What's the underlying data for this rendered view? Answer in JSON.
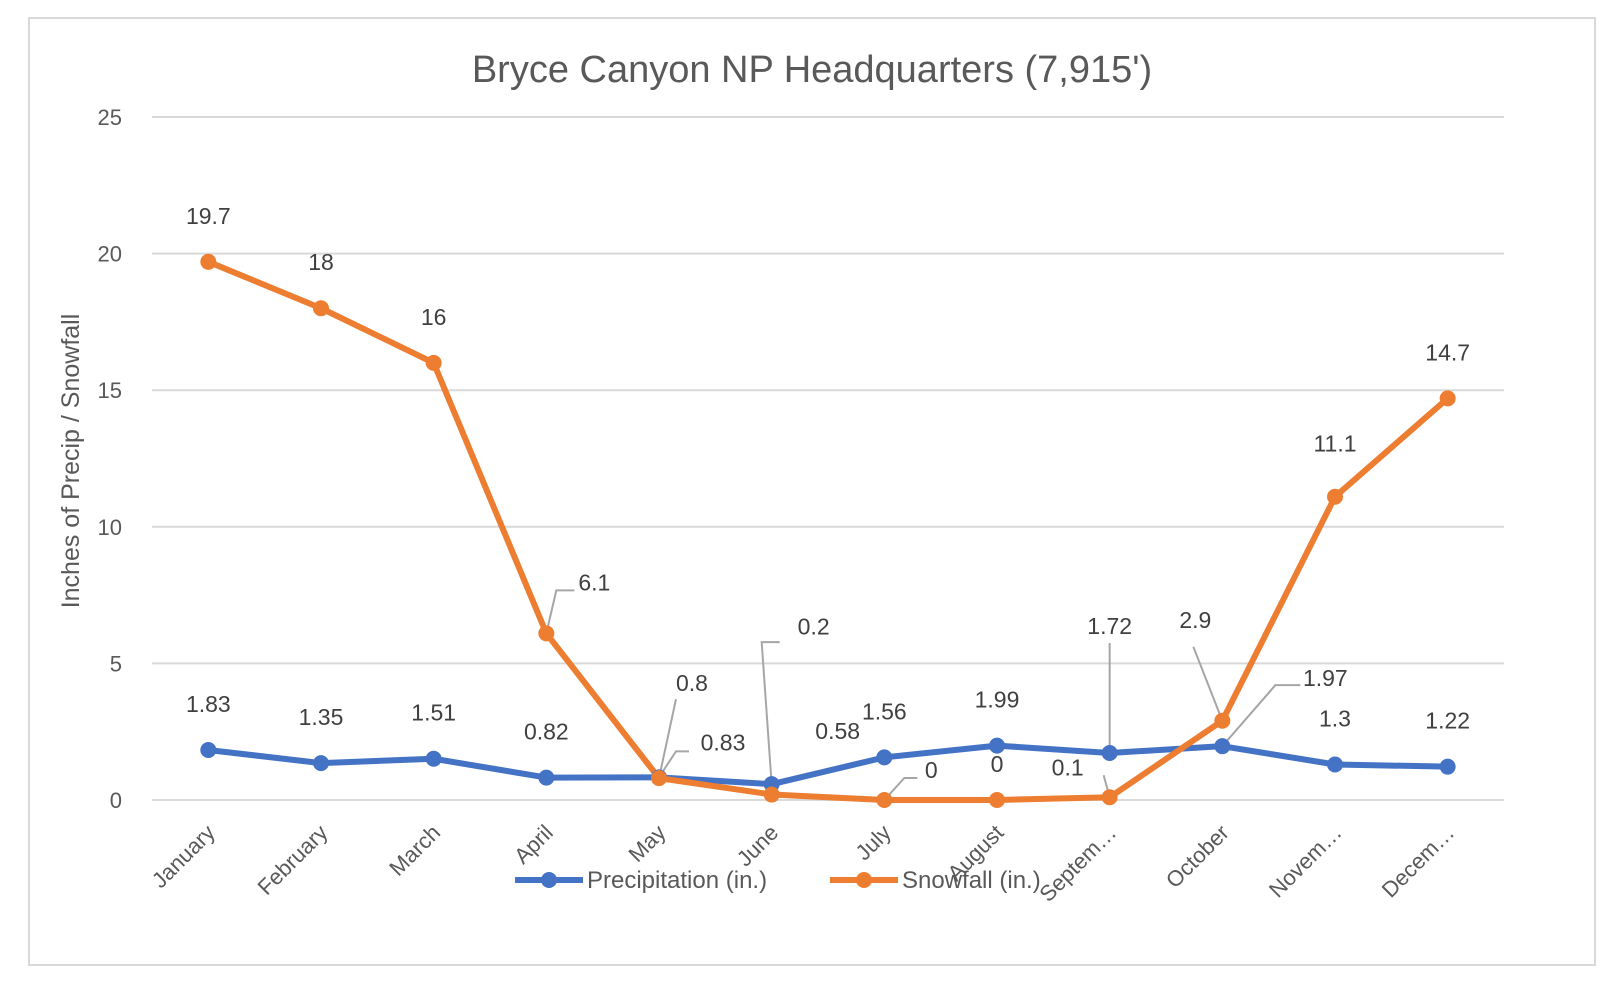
{
  "chart_data": {
    "type": "line",
    "title": "Bryce Canyon NP Headquarters (7,915')",
    "xlabel": "",
    "ylabel": "Inches of Precip / Snowfall",
    "ylim": [
      0,
      25
    ],
    "yticks": [
      0,
      5,
      10,
      15,
      20,
      25
    ],
    "grid": true,
    "legend_position": "bottom",
    "categories": [
      "January",
      "February",
      "March",
      "April",
      "May",
      "June",
      "July",
      "August",
      "Septem…",
      "October",
      "Novem…",
      "Decem…"
    ],
    "series": [
      {
        "name": "Precipitation (in.)",
        "color": "#4472c4",
        "values": [
          1.83,
          1.35,
          1.51,
          0.82,
          0.83,
          0.58,
          1.56,
          1.99,
          1.72,
          1.97,
          1.3,
          1.22
        ],
        "labels": [
          "1.83",
          "1.35",
          "1.51",
          "0.82",
          "0.83",
          "0.58",
          "1.56",
          "1.99",
          "1.72",
          "1.97",
          "1.3",
          "1.22"
        ]
      },
      {
        "name": "Snowfall (in.)",
        "color": "#ed7d31",
        "values": [
          19.7,
          18,
          16,
          6.1,
          0.8,
          0.2,
          0,
          0,
          0.1,
          2.9,
          11.1,
          14.7
        ],
        "labels": [
          "19.7",
          "18",
          "16",
          "6.1",
          "0.8",
          "0.2",
          "0",
          "0",
          "0.1",
          "2.9",
          "11.1",
          "14.7"
        ]
      }
    ]
  }
}
